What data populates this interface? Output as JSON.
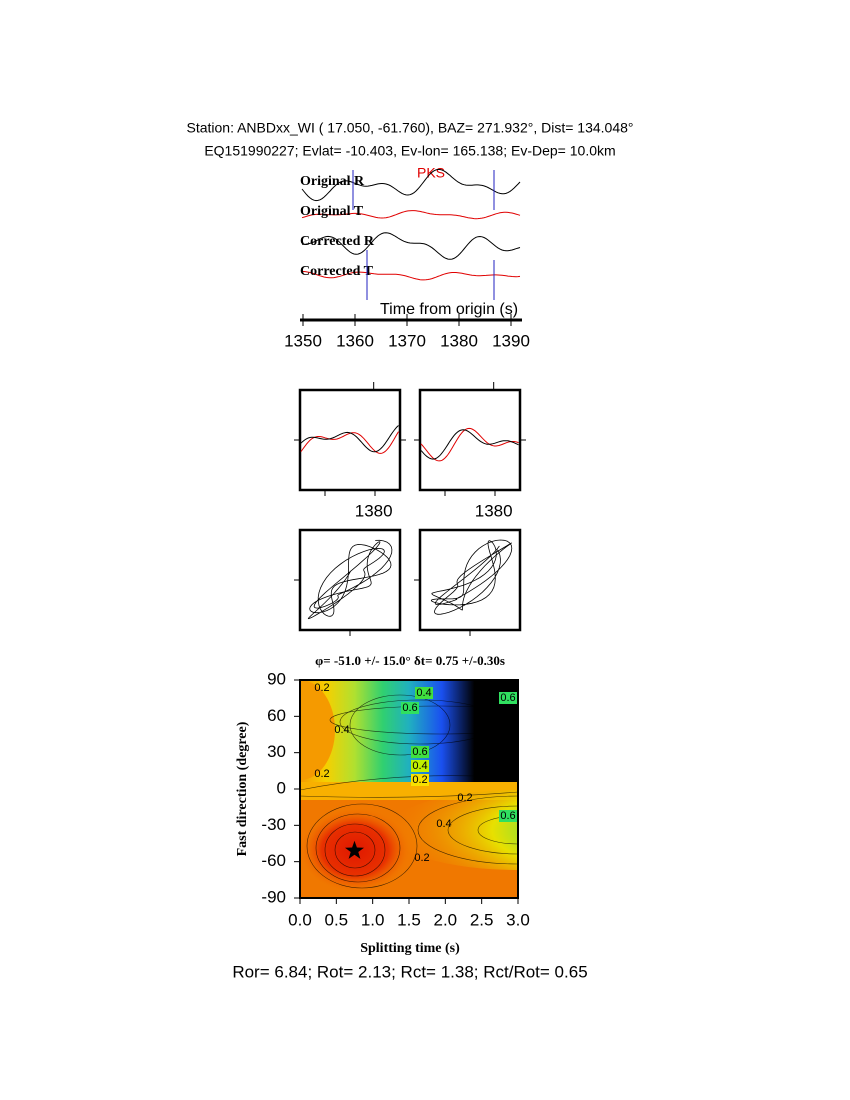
{
  "header": {
    "station": "Station: ANBDxx_WI (  17.050,  -61.760), BAZ=  271.932°, Dist=  134.048°",
    "event": "EQ151990227; Evlat= -10.403, Ev-lon= 165.138; Ev-Dep= 10.0km"
  },
  "chart_data": [
    {
      "type": "waveform",
      "traces": [
        {
          "name": "Original R",
          "color": "#000000"
        },
        {
          "name": "Original T",
          "color": "#e00000"
        },
        {
          "name": "Corrected R",
          "color": "#000000"
        },
        {
          "name": "Corrected T",
          "color": "#e00000"
        }
      ],
      "annotation": "PKS",
      "xlabel": "Time from origin (s)",
      "xlim": [
        1350,
        1392
      ],
      "xticks": [
        1350,
        1360,
        1370,
        1380,
        1390
      ]
    },
    {
      "type": "waveform-window",
      "xlim": [
        1366,
        1385
      ],
      "xticks": [
        1380
      ]
    },
    {
      "type": "waveform-window",
      "xlim": [
        1366,
        1385
      ],
      "xticks": [
        1380
      ]
    },
    {
      "type": "contour",
      "title": "φ= -51.0 +/- 15.0° δt= 0.75 +/-0.30s",
      "xlabel": "Splitting time (s)",
      "ylabel": "Fast direction (degree)",
      "xlim": [
        0,
        3
      ],
      "ylim": [
        -90,
        90
      ],
      "xticks": [
        {
          "value": 0,
          "label": "0.0"
        },
        0.5,
        {
          "value": 1,
          "label": "1.0"
        },
        1.5,
        {
          "value": 2,
          "label": "2.0"
        },
        2.5,
        {
          "value": 3,
          "label": "3.0"
        }
      ],
      "yticks": [
        90,
        60,
        30,
        0,
        -30,
        -60,
        -90
      ],
      "contour_levels": [
        0.2,
        0.4,
        0.6
      ],
      "marker": {
        "x": 0.75,
        "y": -51
      }
    }
  ],
  "footer": "Ror= 6.84; Rot= 2.13; Rct= 1.38; Rct/Rot= 0.65"
}
